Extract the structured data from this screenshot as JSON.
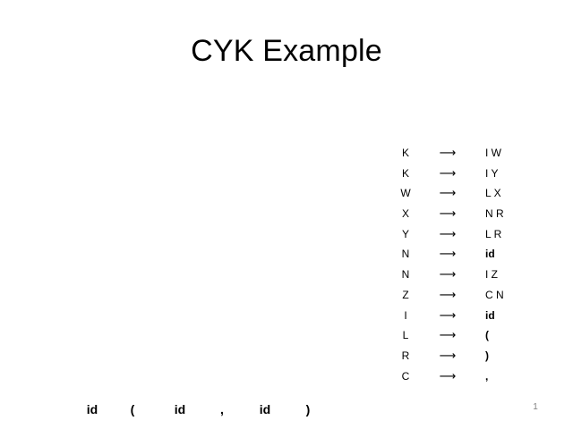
{
  "slide": {
    "title": "CYK Example",
    "arrow_symbol": "⟶",
    "rules": [
      {
        "lhs": "K",
        "rhs": "I W",
        "bold": false
      },
      {
        "lhs": "K",
        "rhs": "I Y",
        "bold": false
      },
      {
        "lhs": "W",
        "rhs": "L X",
        "bold": false
      },
      {
        "lhs": "X",
        "rhs": "N R",
        "bold": false
      },
      {
        "lhs": "Y",
        "rhs": "L R",
        "bold": false
      },
      {
        "lhs": "N",
        "rhs": "id",
        "bold": true
      },
      {
        "lhs": "N",
        "rhs": "I Z",
        "bold": false
      },
      {
        "lhs": "Z",
        "rhs": "C N",
        "bold": false
      },
      {
        "lhs": "I",
        "rhs": "id",
        "bold": true
      },
      {
        "lhs": "L",
        "rhs": "(",
        "bold": true
      },
      {
        "lhs": "R",
        "rhs": ")",
        "bold": true
      },
      {
        "lhs": "C",
        "rhs": ",",
        "bold": true
      }
    ],
    "tokens": [
      "id",
      "(",
      "id",
      ",",
      "id",
      ")"
    ],
    "page_number": "1"
  }
}
